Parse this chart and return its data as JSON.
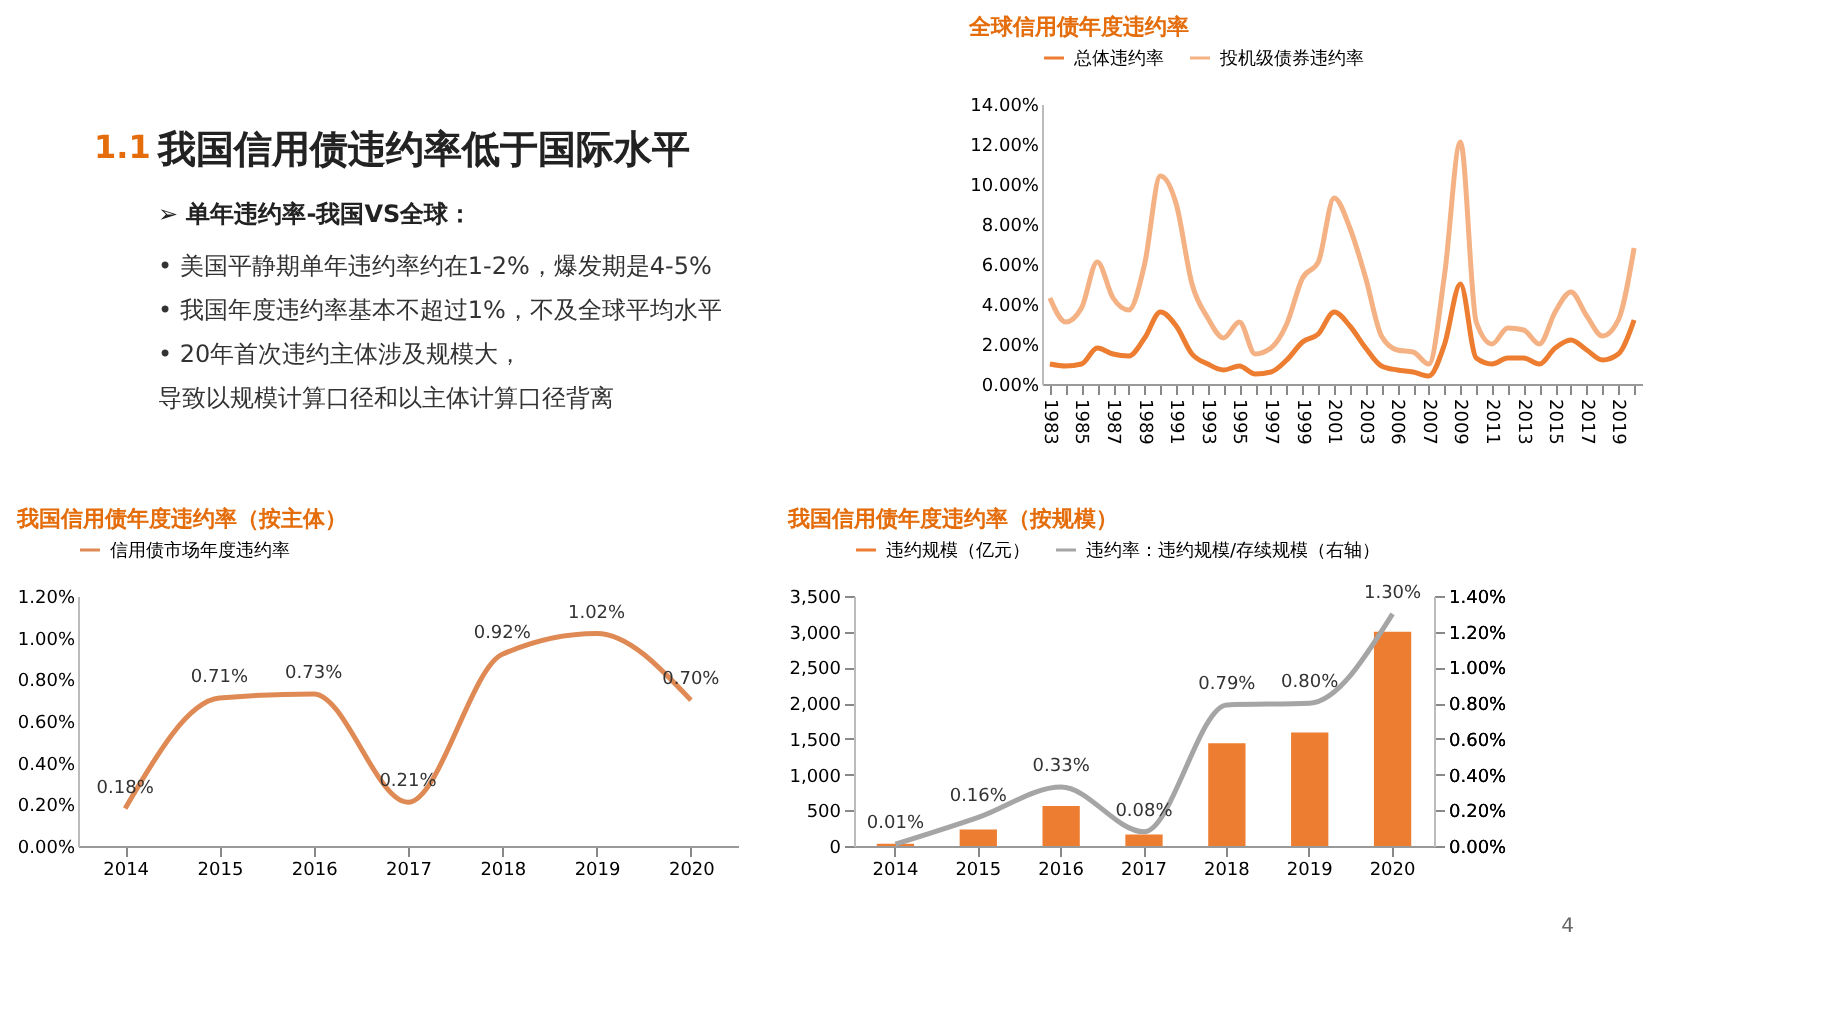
{
  "chart_data": [
    {
      "type": "other",
      "title": "我国信用债违约率低于国际水平",
      "annotations": [
        "1.1",
        "➢  单年违约率-我国VS全球：",
        "•   美国平静期单年违约率约在1-2%，爆发期是4-5%",
        "•   我国年度违约率基本不超过1%，不及全球平均水平",
        "•   20年首次违约主体涉及规模大，",
        "导致以规模计算口径和以主体计算口径背离"
      ]
    },
    {
      "type": "line",
      "title": "全球信用债年度违约率",
      "legend": "top",
      "grid": false,
      "categories": [
        "1983",
        null,
        "1985",
        null,
        "1987",
        null,
        "1989",
        null,
        "1991",
        null,
        "1993",
        null,
        "1995",
        null,
        "1997",
        null,
        "1999",
        null,
        "2001",
        null,
        "2003",
        null,
        "2006",
        null,
        "2007",
        null,
        "2009",
        null,
        "2011",
        null,
        "2013",
        null,
        "2015",
        null,
        "2017",
        null,
        "2019",
        null
      ],
      "ylim": [
        0,
        14
      ],
      "yticks": [
        {
          "value": 0,
          "label": "0.00%"
        },
        {
          "value": 2,
          "label": "2.00%"
        },
        {
          "value": 4,
          "label": "4.00%"
        },
        {
          "value": 6,
          "label": "6.00%"
        },
        {
          "value": 8,
          "label": "8.00%"
        },
        {
          "value": 10,
          "label": "10.00%"
        },
        {
          "value": 12,
          "label": "12.00%"
        },
        {
          "value": 14,
          "label": "14.00%"
        }
      ],
      "series": [
        {
          "name": "总体违约率",
          "color": "#ed7d31",
          "values": [
            1.0,
            0.9,
            1.0,
            1.8,
            1.5,
            1.4,
            2.3,
            3.6,
            2.9,
            1.5,
            1.0,
            0.7,
            0.9,
            0.5,
            0.6,
            1.2,
            2.1,
            2.5,
            3.6,
            2.9,
            1.8,
            0.9,
            0.7,
            0.6,
            0.4,
            2.0,
            5.0,
            1.3,
            1.0,
            1.3,
            1.3,
            1.0,
            1.8,
            2.2,
            1.7,
            1.2,
            1.5,
            3.2
          ]
        },
        {
          "name": "投机级债券违约率",
          "color": "#f4b183",
          "values": [
            4.3,
            3.1,
            3.8,
            6.1,
            4.3,
            3.7,
            6.0,
            10.4,
            9.0,
            5.0,
            3.3,
            2.3,
            3.1,
            1.5,
            1.8,
            3.0,
            5.3,
            6.1,
            9.3,
            7.8,
            5.3,
            2.4,
            1.7,
            1.6,
            1.0,
            5.5,
            12.1,
            3.1,
            2.0,
            2.8,
            2.7,
            2.0,
            3.6,
            4.6,
            3.4,
            2.4,
            3.2,
            6.8
          ]
        }
      ]
    },
    {
      "type": "line",
      "title": "我国信用债年度违约率（按主体）",
      "legend": "top",
      "grid": false,
      "categories": [
        "2014",
        "2015",
        "2016",
        "2017",
        "2018",
        "2019",
        "2020"
      ],
      "ylim": [
        0,
        1.2
      ],
      "yticks": [
        {
          "value": 0,
          "label": "0.00%"
        },
        {
          "value": 0.2,
          "label": "0.20%"
        },
        {
          "value": 0.4,
          "label": "0.40%"
        },
        {
          "value": 0.6,
          "label": "0.60%"
        },
        {
          "value": 0.8,
          "label": "0.80%"
        },
        {
          "value": 1.0,
          "label": "1.00%"
        },
        {
          "value": 1.2,
          "label": "1.20%"
        }
      ],
      "series": [
        {
          "name": "信用债市场年度违约率",
          "color": "#df8a55",
          "values": [
            0.18,
            0.71,
            0.73,
            0.21,
            0.92,
            1.02,
            0.7
          ],
          "value_labels": [
            "0.18%",
            "0.71%",
            "0.73%",
            "0.21%",
            "0.92%",
            "1.02%",
            "0.70%"
          ]
        }
      ]
    },
    {
      "type": "bar",
      "title": "我国信用债年度违约率（按规模）",
      "legend": "top",
      "grid": false,
      "categories": [
        "2014",
        "2015",
        "2016",
        "2017",
        "2018",
        "2019",
        "2020"
      ],
      "ylim": [
        0,
        3500
      ],
      "yticks": [
        {
          "value": 0,
          "label": "0"
        },
        {
          "value": 500,
          "label": "500"
        },
        {
          "value": 1000,
          "label": "1,000"
        },
        {
          "value": 1500,
          "label": "1,500"
        },
        {
          "value": 2000,
          "label": "2,000"
        },
        {
          "value": 2500,
          "label": "2,500"
        },
        {
          "value": 3000,
          "label": "3,000"
        },
        {
          "value": 3500,
          "label": "3,500"
        }
      ],
      "y2lim": [
        0,
        1.4
      ],
      "y2ticks": [
        {
          "value": 0,
          "label": "0.00%"
        },
        {
          "value": 0.2,
          "label": "0.20%"
        },
        {
          "value": 0.4,
          "label": "0.40%"
        },
        {
          "value": 0.6,
          "label": "0.60%"
        },
        {
          "value": 0.8,
          "label": "0.80%"
        },
        {
          "value": 1.0,
          "label": "1.00%"
        },
        {
          "value": 1.2,
          "label": "1.20%"
        },
        {
          "value": 1.4,
          "label": "1.40%"
        }
      ],
      "annotations": [
        "4"
      ],
      "series": [
        {
          "name": "违约规模（亿元）",
          "color": "#ed7d31",
          "values": [
            30,
            230,
            560,
            160,
            1440,
            1590,
            3000
          ]
        },
        {
          "name": "违约率：违约规模/存续规模（右轴）",
          "type": "line",
          "axis": "y2",
          "color": "#a5a5a5",
          "values": [
            0.01,
            0.16,
            0.33,
            0.08,
            0.79,
            0.8,
            1.3
          ],
          "value_labels": [
            "0.01%",
            "0.16%",
            "0.33%",
            "0.08%",
            "0.79%",
            "0.80%",
            "1.30%"
          ]
        }
      ]
    }
  ]
}
